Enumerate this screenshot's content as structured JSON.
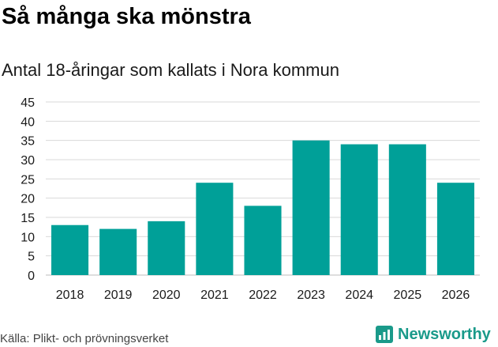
{
  "header": {
    "title": "Så många ska mönstra",
    "subtitle": "Antal 18-åringar som kallats i Nora kommun"
  },
  "footer": {
    "source": "Källa: Plikt- och prövningsverket",
    "brand": "Newsworthy",
    "brand_icon": "bar-chart-logo-icon"
  },
  "colors": {
    "bar": "#00a098",
    "grid": "#d9d9d9",
    "brand": "#1a9a8a"
  },
  "chart_data": {
    "type": "bar",
    "title": "Så många ska mönstra",
    "subtitle": "Antal 18-åringar som kallats i Nora kommun",
    "xlabel": "",
    "ylabel": "",
    "categories": [
      "2018",
      "2019",
      "2020",
      "2021",
      "2022",
      "2023",
      "2024",
      "2025",
      "2026"
    ],
    "values": [
      13,
      12,
      14,
      24,
      18,
      35,
      34,
      34,
      24
    ],
    "ylim": [
      0,
      45
    ],
    "yticks": [
      0,
      5,
      10,
      15,
      20,
      25,
      30,
      35,
      40,
      45
    ],
    "grid": true,
    "legend": "none"
  }
}
